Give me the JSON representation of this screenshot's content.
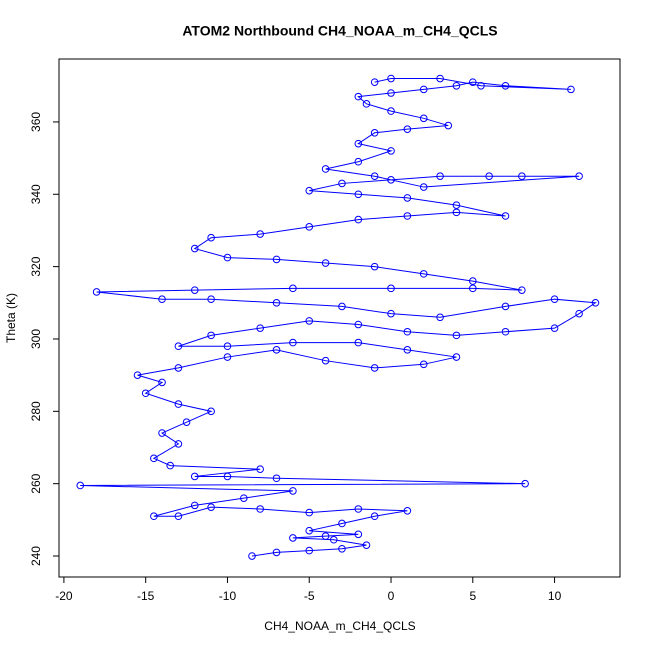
{
  "chart_data": {
    "type": "line",
    "markers": true,
    "title": "ATOM2 Northbound CH4_NOAA_m_CH4_QCLS",
    "x_label": "CH4_NOAA_m_CH4_QCLS",
    "y_label": "Theta (K)",
    "color": "#0000ff",
    "xlim": [
      -20.3,
      14.0
    ],
    "ylim": [
      234.2,
      377.4
    ],
    "xticks": [
      -20,
      -15,
      -10,
      -5,
      0,
      5,
      10
    ],
    "yticks": [
      240,
      260,
      280,
      300,
      320,
      340,
      360
    ],
    "x": [
      -8.5,
      -7,
      -5,
      -3,
      -1.5,
      -3.5,
      -6,
      -4,
      -2,
      -5,
      -3,
      -1,
      1,
      -2,
      -5,
      -8,
      -11,
      -13,
      -14.5,
      -12,
      -9,
      -6,
      -19,
      8.2,
      -7,
      -10,
      -12,
      -8,
      -13.5,
      -14.5,
      -13,
      -14,
      -12.5,
      -11,
      -13,
      -15,
      -14,
      -15.5,
      -13,
      -10,
      -7,
      -4,
      -1,
      2,
      4,
      1,
      -2,
      -6,
      -10,
      -13,
      -11,
      -8,
      -5,
      -2,
      1,
      4,
      7,
      10,
      11.5,
      12.5,
      10,
      7,
      3,
      0,
      -3,
      -7,
      -11,
      -14,
      -18,
      -12,
      -6,
      0,
      5,
      8,
      5,
      2,
      -1,
      -4,
      -7,
      -10,
      -12,
      -11,
      -8,
      -5,
      -2,
      1,
      4,
      7,
      4,
      1,
      -2,
      -5,
      -3,
      0,
      3,
      6,
      8,
      11.5,
      2,
      -1,
      -4,
      -2,
      0,
      -2,
      -1,
      1,
      3.5,
      2,
      0,
      -1.5,
      -2,
      0,
      2,
      4,
      5,
      7,
      11,
      5.5,
      3,
      0,
      -1
    ],
    "values": [
      240,
      241,
      241.5,
      242,
      243,
      244.5,
      245,
      245.5,
      246,
      247,
      249,
      251,
      252.5,
      253,
      252,
      253,
      253.5,
      251,
      251,
      254,
      256,
      258,
      259.5,
      260,
      261.5,
      262,
      262,
      264,
      265,
      267,
      271,
      274,
      277,
      280,
      282,
      285,
      288,
      290,
      292,
      295,
      297,
      294,
      292,
      293,
      295,
      297,
      299,
      299,
      298,
      298,
      301,
      303,
      305,
      304,
      302,
      301,
      302,
      303,
      307,
      310,
      311,
      309,
      306,
      307,
      309,
      310,
      311,
      311,
      313,
      313.5,
      314,
      314,
      314,
      313.5,
      316,
      318,
      320,
      321,
      322,
      322.5,
      325,
      328,
      329,
      331,
      333,
      334,
      335,
      334,
      337,
      339,
      340,
      341,
      343,
      344,
      345,
      345,
      345,
      345,
      342,
      345,
      347,
      349,
      352,
      354,
      357,
      358,
      359,
      361,
      363,
      365,
      367,
      368,
      369,
      370,
      371,
      370,
      369,
      370,
      372,
      372,
      371
    ]
  }
}
